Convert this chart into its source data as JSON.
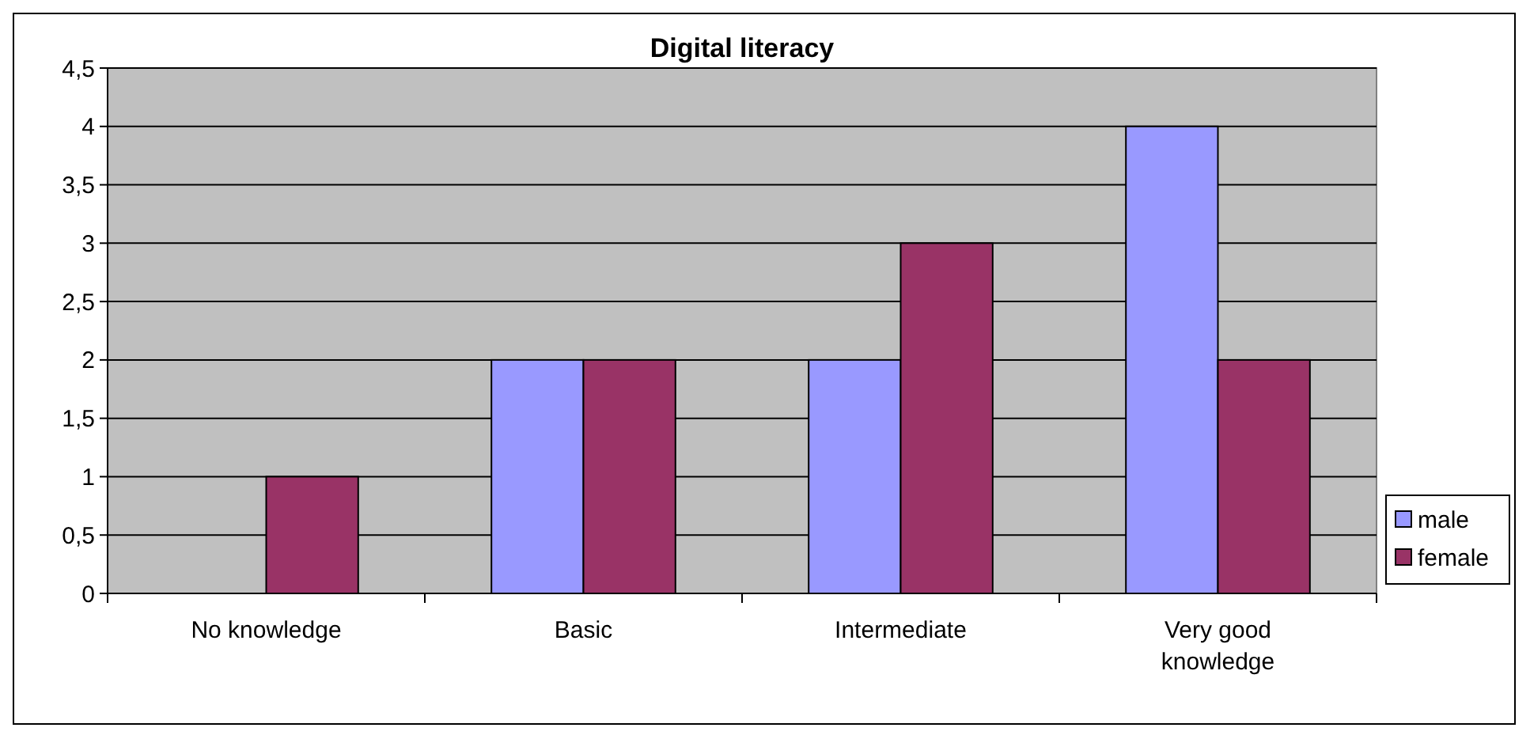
{
  "chart_data": {
    "type": "bar",
    "title": "Digital literacy",
    "categories": [
      "No knowledge",
      "Basic",
      "Intermediate",
      "Very good knowledge"
    ],
    "series": [
      {
        "name": "male",
        "color": "#9999ff",
        "values": [
          0,
          2,
          2,
          4
        ]
      },
      {
        "name": "female",
        "color": "#993366",
        "values": [
          1,
          2,
          3,
          2
        ]
      }
    ],
    "ylim": [
      0,
      4.5
    ],
    "yticks": [
      0,
      {
        "value": 0.5,
        "label": "0,5"
      },
      1,
      {
        "value": 1.5,
        "label": "1,5"
      },
      2,
      {
        "value": 2.5,
        "label": "2,5"
      },
      3,
      {
        "value": 3.5,
        "label": "3,5"
      },
      4,
      {
        "value": 4.5,
        "label": "4,5"
      }
    ],
    "grid": "y",
    "legend": "right"
  }
}
